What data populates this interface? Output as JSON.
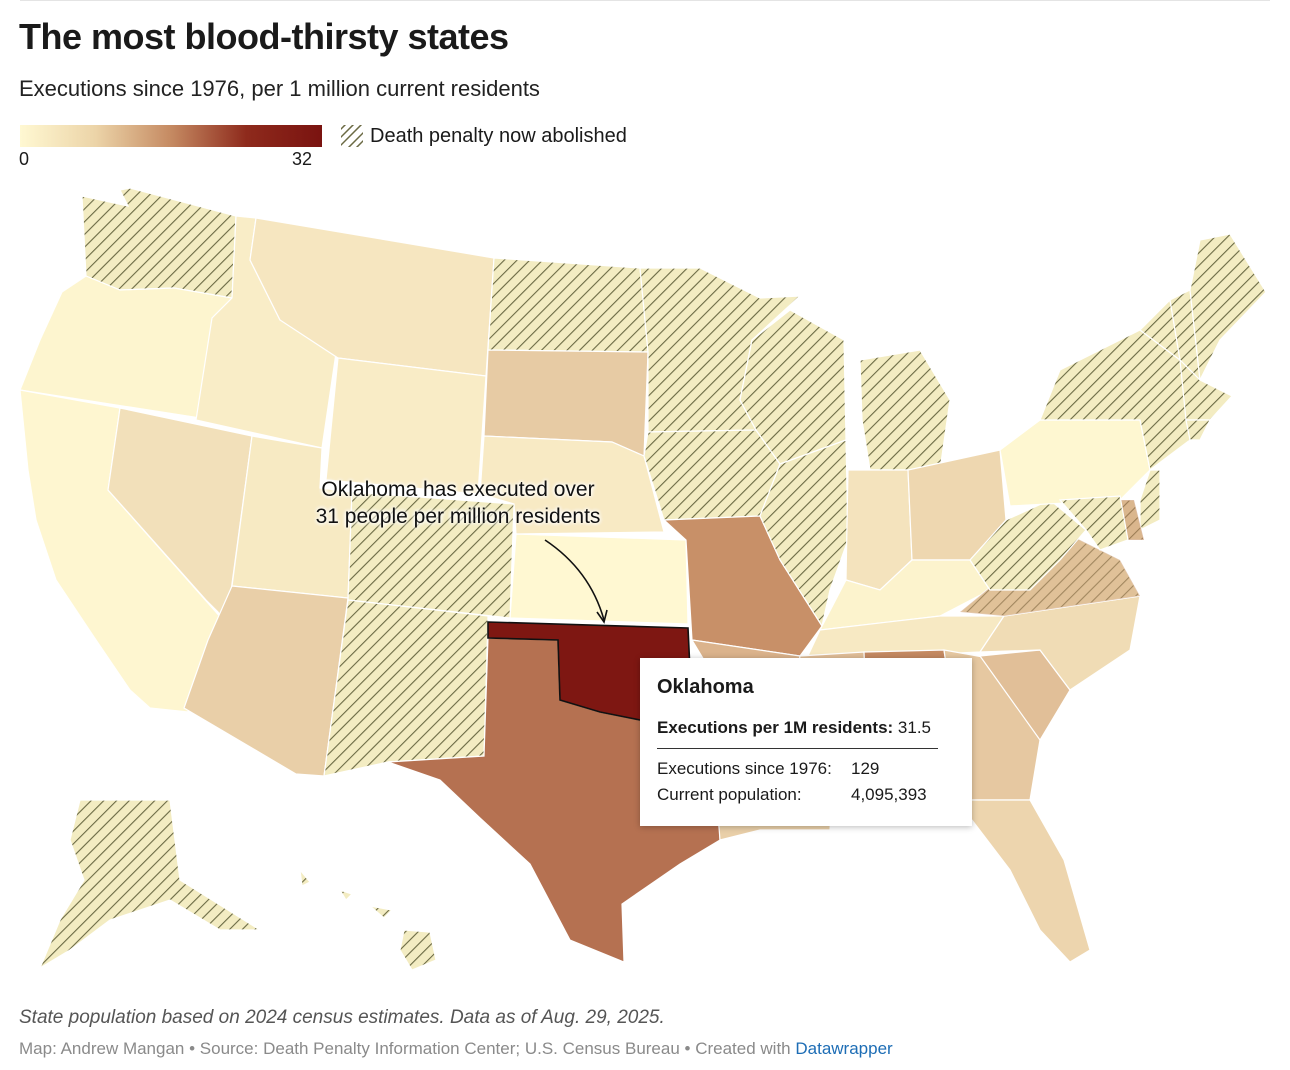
{
  "title": "The most blood-thirsty states",
  "subtitle": "Executions since 1976, per 1 million current residents",
  "legend": {
    "min_label": "0",
    "max_label": "32",
    "min_value": 0,
    "max_value": 32,
    "hatch_label": "Death penalty now abolished",
    "color_low": "#fff8d2",
    "color_high": "#7a1310"
  },
  "annotation": {
    "line1": "Oklahoma has executed over",
    "line2": "31 people per million residents"
  },
  "tooltip": {
    "state": "Oklahoma",
    "rate_label": "Executions per 1M residents:",
    "rate_value": "31.5",
    "exec_label": "Executions since 1976:",
    "exec_value": "129",
    "pop_label": "Current population:",
    "pop_value": "4,095,393"
  },
  "notes": "State population based on 2024 census estimates. Data as of Aug. 29, 2025.",
  "credit": {
    "text": "Map: Andrew Mangan • Source: Death Penalty Information Center; U.S. Census Bureau • Created with ",
    "link": "Datawrapper"
  },
  "colors": {
    "stroke": "#ffffff",
    "hatch_line": "#6b6a44",
    "hatch_bg": "#f3ecc2",
    "oklahoma": "#7e1712"
  },
  "states": [
    {
      "id": "WA",
      "rate": 1.0,
      "abolished": true
    },
    {
      "id": "OR",
      "rate": 0.5,
      "abolished": false
    },
    {
      "id": "CA",
      "rate": 0.3,
      "abolished": false
    },
    {
      "id": "NV",
      "rate": 3.5,
      "abolished": false
    },
    {
      "id": "ID",
      "rate": 1.6,
      "abolished": false
    },
    {
      "id": "MT",
      "rate": 2.6,
      "abolished": false
    },
    {
      "id": "WY",
      "rate": 1.7,
      "abolished": false
    },
    {
      "id": "UT",
      "rate": 2.1,
      "abolished": false
    },
    {
      "id": "AZ",
      "rate": 6.0,
      "abolished": false
    },
    {
      "id": "CO",
      "rate": 0.2,
      "abolished": true
    },
    {
      "id": "NM",
      "rate": 0.5,
      "abolished": true
    },
    {
      "id": "ND",
      "rate": 0.0,
      "abolished": true
    },
    {
      "id": "SD",
      "rate": 6.6,
      "abolished": false
    },
    {
      "id": "NE",
      "rate": 2.0,
      "abolished": false
    },
    {
      "id": "KS",
      "rate": 0.0,
      "abolished": false
    },
    {
      "id": "OK",
      "rate": 31.5,
      "abolished": false
    },
    {
      "id": "TX",
      "rate": 19.4,
      "abolished": false
    },
    {
      "id": "MN",
      "rate": 0.0,
      "abolished": true
    },
    {
      "id": "IA",
      "rate": 0.0,
      "abolished": true
    },
    {
      "id": "MO",
      "rate": 15.2,
      "abolished": false
    },
    {
      "id": "AR",
      "rate": 10.0,
      "abolished": false
    },
    {
      "id": "LA",
      "rate": 6.0,
      "abolished": false
    },
    {
      "id": "WI",
      "rate": 0.0,
      "abolished": true
    },
    {
      "id": "IL",
      "rate": 1.0,
      "abolished": true
    },
    {
      "id": "MI",
      "rate": 0.0,
      "abolished": true
    },
    {
      "id": "IN",
      "rate": 3.0,
      "abolished": false
    },
    {
      "id": "OH",
      "rate": 4.8,
      "abolished": false
    },
    {
      "id": "KY",
      "rate": 0.7,
      "abolished": false
    },
    {
      "id": "TN",
      "rate": 2.2,
      "abolished": false
    },
    {
      "id": "MS",
      "rate": 8.4,
      "abolished": false
    },
    {
      "id": "AL",
      "rate": 16.0,
      "abolished": false
    },
    {
      "id": "GA",
      "rate": 7.0,
      "abolished": false
    },
    {
      "id": "FL",
      "rate": 5.1,
      "abolished": false
    },
    {
      "id": "SC",
      "rate": 8.3,
      "abolished": false
    },
    {
      "id": "NC",
      "rate": 4.1,
      "abolished": false
    },
    {
      "id": "VA",
      "rate": 13.0,
      "abolished": true
    },
    {
      "id": "WV",
      "rate": 0.0,
      "abolished": true
    },
    {
      "id": "PA",
      "rate": 0.2,
      "abolished": false
    },
    {
      "id": "NY",
      "rate": 0.0,
      "abolished": true
    },
    {
      "id": "VT",
      "rate": 0.0,
      "abolished": true
    },
    {
      "id": "NH",
      "rate": 0.0,
      "abolished": true
    },
    {
      "id": "ME",
      "rate": 0.0,
      "abolished": true
    },
    {
      "id": "MA",
      "rate": 0.0,
      "abolished": true
    },
    {
      "id": "CT",
      "rate": 0.3,
      "abolished": true
    },
    {
      "id": "NJ",
      "rate": 0.0,
      "abolished": true
    },
    {
      "id": "DE",
      "rate": 16.0,
      "abolished": true
    },
    {
      "id": "MD",
      "rate": 0.8,
      "abolished": true
    },
    {
      "id": "AK",
      "rate": 0.0,
      "abolished": true
    },
    {
      "id": "HI",
      "rate": 0.0,
      "abolished": true
    }
  ]
}
